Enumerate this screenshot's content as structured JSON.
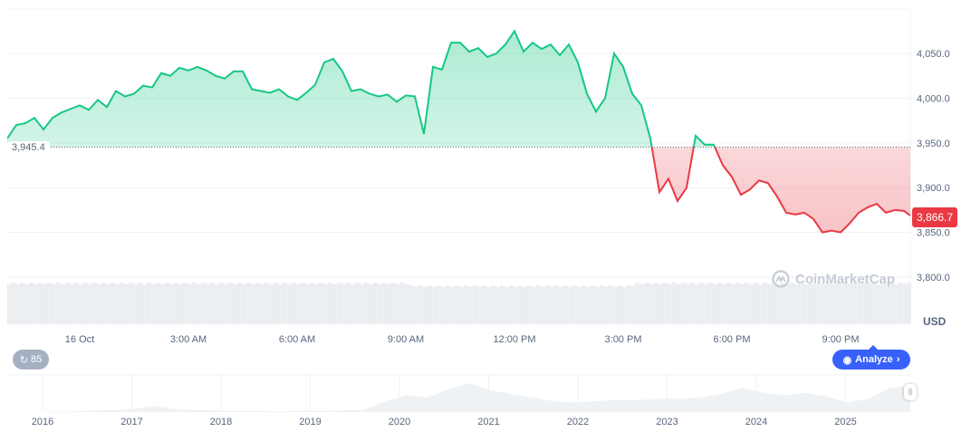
{
  "chart_data": {
    "type": "area",
    "title": "",
    "ylabel": "",
    "currency": "USD",
    "y_ticks": [
      "4,050.0",
      "4,000.0",
      "3,950.0",
      "3,900.0",
      "3,850.0",
      "3,800.0"
    ],
    "y_tick_values": [
      4050,
      4000,
      3950,
      3900,
      3850,
      3800
    ],
    "ylim": [
      3790,
      4085
    ],
    "x_ticks": [
      "16 Oct",
      "3:00 AM",
      "6:00 AM",
      "9:00 AM",
      "12:00 PM",
      "3:00 PM",
      "6:00 PM",
      "9:00 PM"
    ],
    "x_start": "15 Oct 22:00",
    "x_interval_minutes": 15,
    "baseline": 3945.4,
    "baseline_label": "3,945.4",
    "last_value": 3866.7,
    "last_label": "3,866.7",
    "values": [
      3955,
      3970,
      3972,
      3978,
      3965,
      3978,
      3984,
      3988,
      3992,
      3987,
      3998,
      3990,
      4008,
      4002,
      4005,
      4014,
      4012,
      4028,
      4025,
      4034,
      4031,
      4035,
      4031,
      4025,
      4022,
      4030,
      4030,
      4010,
      4008,
      4006,
      4010,
      4002,
      3998,
      4006,
      4015,
      4040,
      4044,
      4030,
      4008,
      4010,
      4005,
      4002,
      4004,
      3996,
      4003,
      4002,
      3960,
      4035,
      4032,
      4062,
      4062,
      4052,
      4056,
      4046,
      4050,
      4060,
      4075,
      4052,
      4062,
      4055,
      4060,
      4048,
      4060,
      4040,
      4005,
      3985,
      4000,
      4050,
      4035,
      4005,
      3992,
      3955,
      3895,
      3910,
      3885,
      3900,
      3958,
      3948,
      3948,
      3925,
      3912,
      3892,
      3898,
      3908,
      3905,
      3890,
      3872,
      3870,
      3872,
      3865,
      3850,
      3852,
      3850,
      3860,
      3872,
      3878,
      3882,
      3872,
      3875,
      3874,
      3866.7
    ],
    "colors": {
      "up": "#16c784",
      "down": "#ea3943",
      "grid": "#eff2f5",
      "volume": "#e7eaee",
      "navigator": "#eff2f5"
    },
    "navigator": {
      "x_ticks": [
        "2016",
        "2017",
        "2018",
        "2019",
        "2020",
        "2021",
        "2022",
        "2023",
        "2024",
        "2025"
      ],
      "values": [
        1,
        1,
        2,
        3,
        6,
        8,
        14,
        25,
        12,
        8,
        6,
        4,
        4,
        3,
        5,
        5,
        6,
        10,
        45,
        70,
        60,
        95,
        120,
        90,
        75,
        60,
        45,
        40,
        45,
        50,
        50,
        55,
        55,
        60,
        75,
        100,
        80,
        70,
        80,
        65,
        40,
        55,
        100,
        110
      ]
    }
  },
  "ui": {
    "usd_label": "USD",
    "history_count": "85",
    "analyze_label": "Analyze",
    "watermark": "CoinMarketCap"
  }
}
